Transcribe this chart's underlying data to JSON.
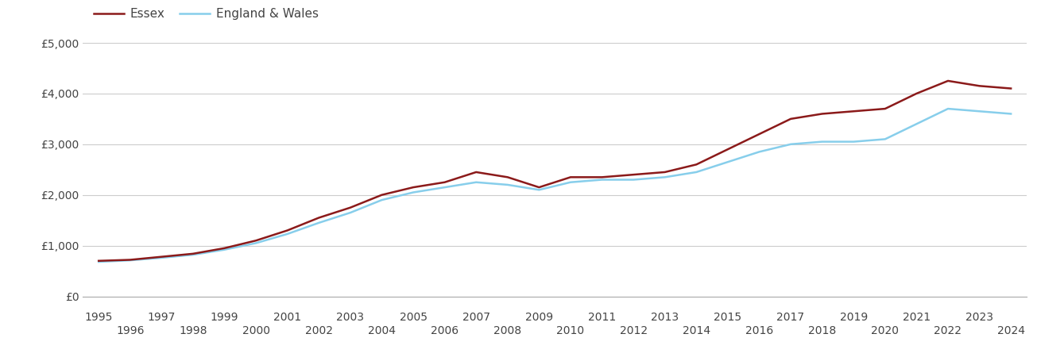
{
  "essex_years": [
    1995,
    1996,
    1997,
    1998,
    1999,
    2000,
    2001,
    2002,
    2003,
    2004,
    2005,
    2006,
    2007,
    2008,
    2009,
    2010,
    2011,
    2012,
    2013,
    2014,
    2015,
    2016,
    2017,
    2018,
    2019,
    2020,
    2021,
    2022,
    2023,
    2024
  ],
  "essex_values": [
    700,
    720,
    780,
    840,
    950,
    1100,
    1300,
    1550,
    1750,
    2000,
    2150,
    2250,
    2450,
    2350,
    2150,
    2350,
    2350,
    2400,
    2450,
    2600,
    2900,
    3200,
    3500,
    3600,
    3650,
    3700,
    4000,
    4250,
    4150,
    4100
  ],
  "ew_years": [
    1995,
    1996,
    1997,
    1998,
    1999,
    2000,
    2001,
    2002,
    2003,
    2004,
    2005,
    2006,
    2007,
    2008,
    2009,
    2010,
    2011,
    2012,
    2013,
    2014,
    2015,
    2016,
    2017,
    2018,
    2019,
    2020,
    2021,
    2022,
    2023,
    2024
  ],
  "ew_values": [
    680,
    710,
    760,
    820,
    920,
    1050,
    1230,
    1450,
    1650,
    1900,
    2050,
    2150,
    2250,
    2200,
    2100,
    2250,
    2300,
    2300,
    2350,
    2450,
    2650,
    2850,
    3000,
    3050,
    3050,
    3100,
    3400,
    3700,
    3650,
    3600
  ],
  "essex_color": "#8B1A1A",
  "ew_color": "#87CEEB",
  "essex_label": "Essex",
  "ew_label": "England & Wales",
  "ylim": [
    0,
    5000
  ],
  "yticks": [
    0,
    1000,
    2000,
    3000,
    4000,
    5000
  ],
  "ytick_labels": [
    "£0",
    "£1,000",
    "£2,000",
    "£3,000",
    "£4,000",
    "£5,000"
  ],
  "bg_color": "#ffffff",
  "grid_color": "#cccccc",
  "line_width": 1.8,
  "legend_fontsize": 11,
  "tick_fontsize": 10,
  "xlim_left": 1994.5,
  "xlim_right": 2024.5
}
